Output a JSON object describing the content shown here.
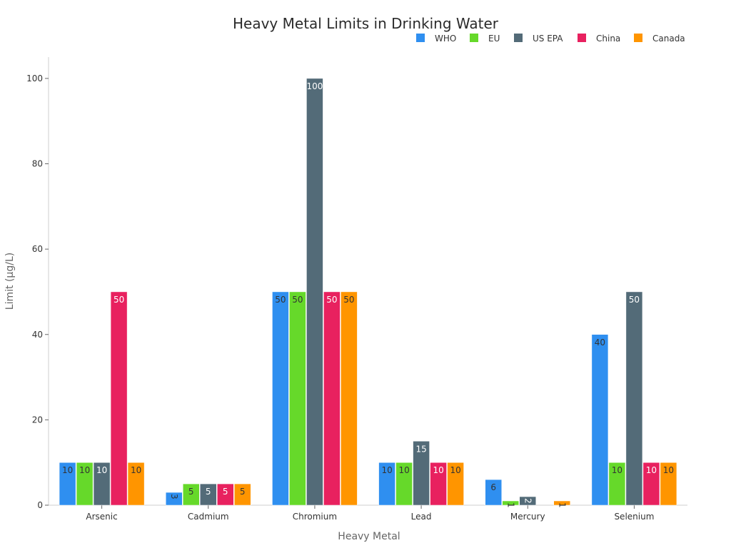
{
  "chart_data": {
    "type": "bar",
    "title": "Heavy Metal Limits in Drinking Water",
    "xlabel": "Heavy Metal",
    "ylabel": "Limit (µg/L)",
    "categories": [
      "Arsenic",
      "Cadmium",
      "Chromium",
      "Lead",
      "Mercury",
      "Selenium"
    ],
    "series": [
      {
        "name": "WHO",
        "color": "#2f8ff0",
        "label_color": "#333333",
        "values": [
          10,
          3,
          50,
          10,
          6,
          40
        ]
      },
      {
        "name": "EU",
        "color": "#66d92a",
        "label_color": "#333333",
        "values": [
          10,
          5,
          50,
          10,
          1,
          10
        ]
      },
      {
        "name": "US EPA",
        "color": "#536b78",
        "label_color": "#ffffff",
        "values": [
          10,
          5,
          100,
          15,
          2,
          50
        ]
      },
      {
        "name": "China",
        "color": "#e8215f",
        "label_color": "#ffffff",
        "values": [
          50,
          5,
          50,
          10,
          0,
          10
        ]
      },
      {
        "name": "Canada",
        "color": "#ff9500",
        "label_color": "#333333",
        "values": [
          10,
          5,
          50,
          10,
          1,
          10
        ]
      }
    ],
    "ylim": [
      0,
      105
    ],
    "yticks": [
      0,
      20,
      40,
      60,
      80,
      100
    ],
    "grid": false,
    "legend_position": "top-right"
  }
}
